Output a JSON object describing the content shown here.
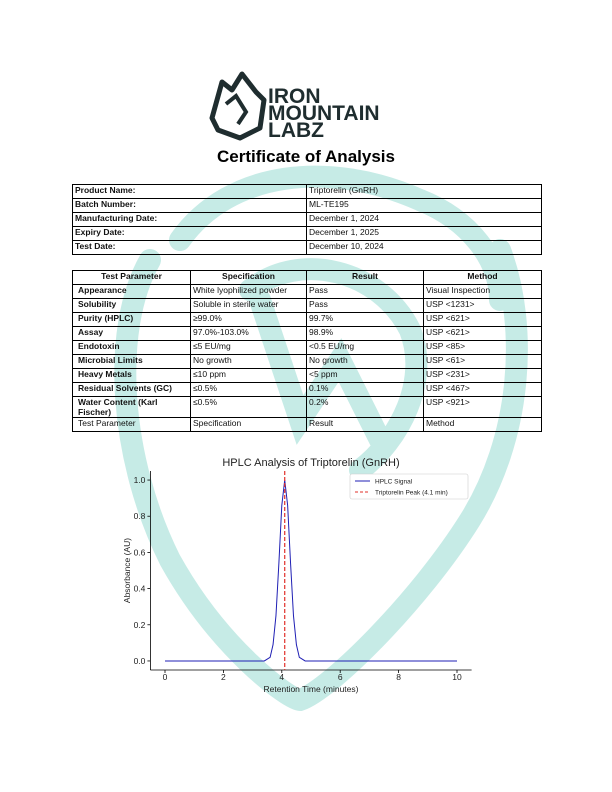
{
  "header": {
    "logo": [
      "IRON",
      "MOUNTAIN",
      "LABZ"
    ],
    "title": "Certificate of Analysis"
  },
  "info_table": {
    "rows": [
      [
        "Product Name:",
        "Triptorelin (GnRH)"
      ],
      [
        "Batch Number:",
        "ML-TE195"
      ],
      [
        "Manufacturing Date:",
        "December 1, 2024"
      ],
      [
        "Expiry Date:",
        "December 1, 2025"
      ],
      [
        "Test Date:",
        "December 10, 2024"
      ]
    ]
  },
  "test_table": {
    "columns": [
      "Test Parameter",
      "Specification",
      "Result",
      "Method"
    ],
    "rows": [
      [
        "Appearance",
        "White lyophilized powder",
        "Pass",
        "Visual Inspection"
      ],
      [
        "Solubility",
        "Soluble in sterile water",
        "Pass",
        "USP <1231>"
      ],
      [
        "Purity (HPLC)",
        "≥99.0%",
        "99.7%",
        "USP <621>"
      ],
      [
        "Assay",
        "97.0%-103.0%",
        "98.9%",
        "USP <621>"
      ],
      [
        "Endotoxin",
        "≤5 EU/mg",
        "<0.5 EU/mg",
        "USP <85>"
      ],
      [
        "Microbial Limits",
        "No growth",
        "No growth",
        "USP <61>"
      ],
      [
        "Heavy Metals",
        "≤10 ppm",
        "<5 ppm",
        "USP <231>"
      ],
      [
        "Residual Solvents (GC)",
        "≤0.5%",
        "0.1%",
        "USP <467>"
      ],
      [
        "Water Content (Karl Fischer)",
        "≤0.5%",
        "0.2%",
        "USP <921>"
      ]
    ],
    "footer": [
      "Test Parameter",
      "Specification",
      "Result",
      "Method"
    ]
  },
  "chart_data": {
    "type": "line",
    "title": "HPLC Analysis of Triptorelin (GnRH)",
    "x_label": "Retention Time (minutes)",
    "y_label": "Absorbance (AU)",
    "x": [
      0,
      1,
      2,
      3,
      3.4,
      3.6,
      3.7,
      3.8,
      3.9,
      4.0,
      4.1,
      4.2,
      4.3,
      4.4,
      4.5,
      4.6,
      4.8,
      5,
      6,
      7,
      8,
      9,
      10
    ],
    "series": [
      {
        "name": "HPLC Signal",
        "color": "#1f1fb4",
        "values": [
          0,
          0,
          0,
          0,
          0,
          0.02,
          0.09,
          0.25,
          0.54,
          0.86,
          1.0,
          0.86,
          0.54,
          0.25,
          0.09,
          0.02,
          0,
          0,
          0,
          0,
          0,
          0,
          0
        ]
      }
    ],
    "peak": {
      "name": "Triptorelin Peak (4.1 min)",
      "x": 4.1,
      "color": "#e0302a"
    },
    "xlim": [
      -0.5,
      10.5
    ],
    "ylim": [
      -0.05,
      1.05
    ],
    "xticks": [
      0,
      2,
      4,
      6,
      8,
      10
    ],
    "yticks": [
      {
        "value": 0,
        "label": "0.0"
      },
      {
        "value": 0.2,
        "label": "0.2"
      },
      {
        "value": 0.4,
        "label": "0.4"
      },
      {
        "value": 0.6,
        "label": "0.6"
      },
      {
        "value": 0.8,
        "label": "0.8"
      },
      {
        "value": 1,
        "label": "1.0"
      }
    ],
    "legend": "upper right"
  }
}
